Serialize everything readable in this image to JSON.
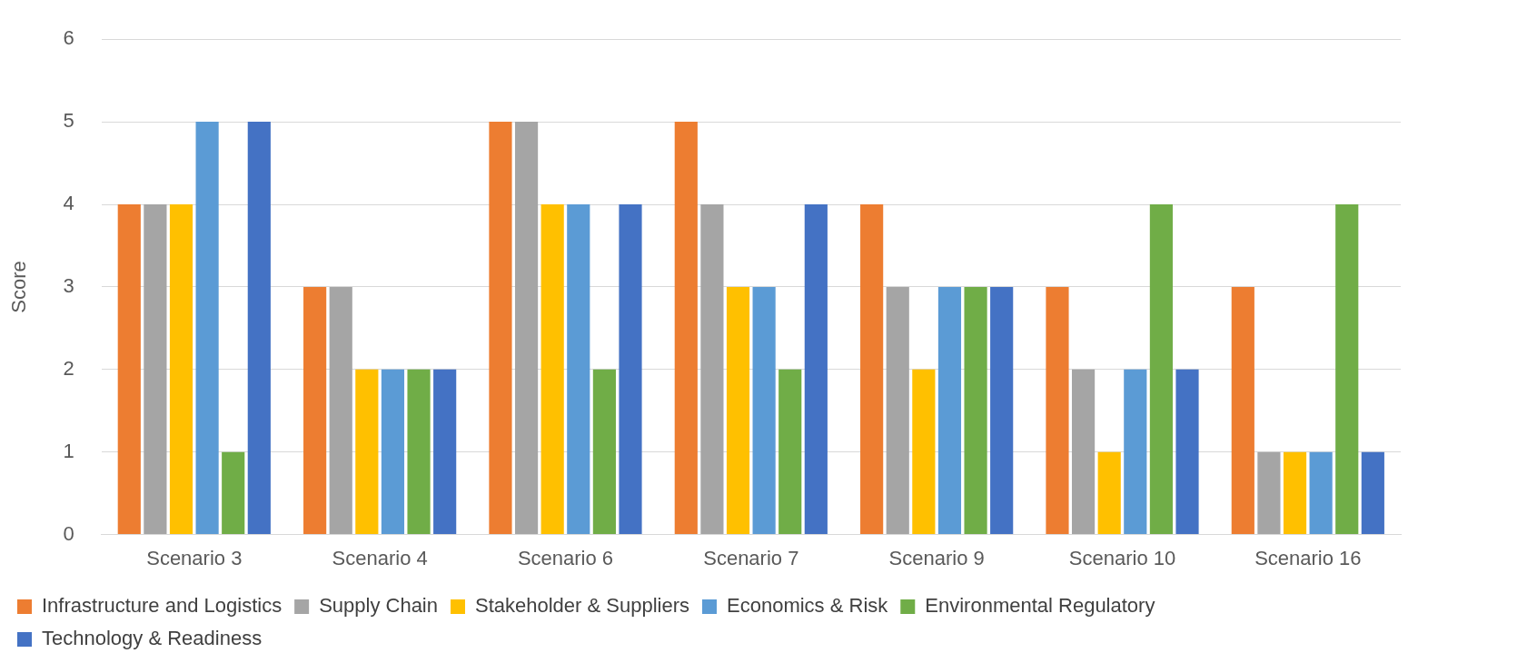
{
  "chart_data": {
    "type": "bar",
    "ylabel": "Score",
    "categories": [
      "Scenario 3",
      "Scenario 4",
      "Scenario 6",
      "Scenario 7",
      "Scenario 9",
      "Scenario 10",
      "Scenario 16"
    ],
    "series": [
      {
        "name": "Infrastructure and Logistics",
        "color": "#ed7d31",
        "values": [
          4,
          3,
          5,
          5,
          4,
          3,
          3
        ]
      },
      {
        "name": "Supply Chain",
        "color": "#a5a5a5",
        "values": [
          4,
          3,
          5,
          4,
          3,
          2,
          1
        ]
      },
      {
        "name": "Stakeholder & Suppliers",
        "color": "#ffc000",
        "values": [
          4,
          2,
          4,
          3,
          2,
          1,
          1
        ]
      },
      {
        "name": "Economics & Risk",
        "color": "#5b9bd5",
        "values": [
          5,
          2,
          4,
          3,
          3,
          2,
          1
        ]
      },
      {
        "name": "Environmental Regulatory",
        "color": "#70ad47",
        "values": [
          1,
          2,
          2,
          2,
          3,
          4,
          4
        ]
      },
      {
        "name": "Technology & Readiness",
        "color": "#4472c4",
        "values": [
          5,
          2,
          4,
          4,
          3,
          2,
          1
        ]
      }
    ],
    "ylim": [
      0,
      6
    ],
    "yticks": [
      0,
      1,
      2,
      3,
      4,
      5,
      6
    ],
    "grid": "y",
    "legend": "bottom"
  }
}
